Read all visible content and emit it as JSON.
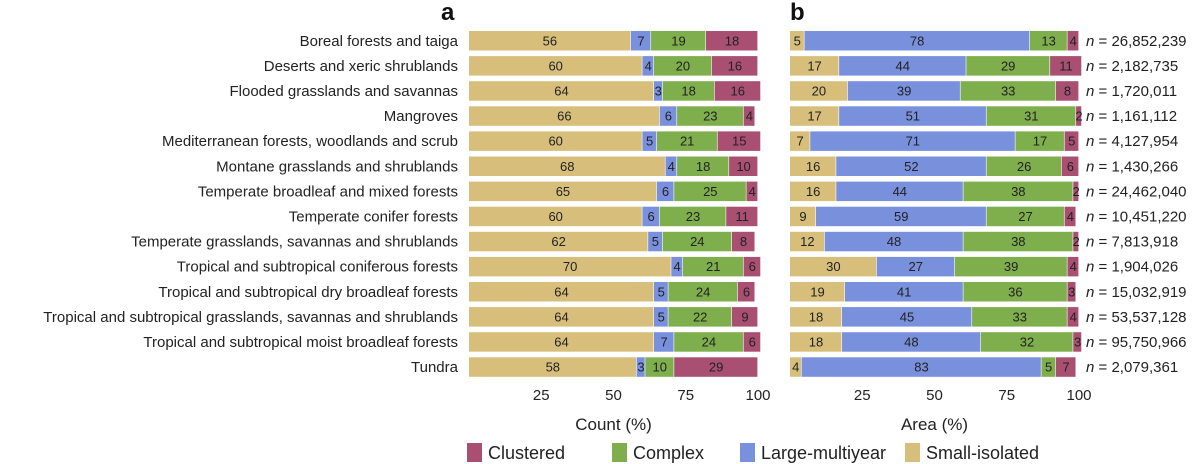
{
  "chart_data": [
    {
      "type": "bar",
      "orientation": "horizontal",
      "stacked": true,
      "panel_label": "a",
      "xlabel": "Count (%)",
      "xlim": [
        0,
        100
      ],
      "xticks": [
        25,
        50,
        75,
        100
      ],
      "categories": [
        "Boreal forests and taiga",
        "Deserts and xeric shrublands",
        "Flooded grasslands and savannas",
        "Mangroves",
        "Mediterranean forests, woodlands and scrub",
        "Montane grasslands and shrublands",
        "Temperate broadleaf and mixed forests",
        "Temperate conifer forests",
        "Temperate grasslands, savannas and shrublands",
        "Tropical and subtropical coniferous forests",
        "Tropical and subtropical dry broadleaf forests",
        "Tropical and subtropical grasslands, savannas and shrublands",
        "Tropical and subtropical moist broadleaf forests",
        "Tundra"
      ],
      "series": [
        {
          "name": "Small-isolated",
          "color": "#d7bf7b",
          "values": [
            56,
            60,
            64,
            66,
            60,
            68,
            65,
            60,
            62,
            70,
            64,
            64,
            64,
            58
          ]
        },
        {
          "name": "Large-multiyear",
          "color": "#7990dd",
          "values": [
            7,
            4,
            3,
            6,
            5,
            4,
            6,
            6,
            5,
            4,
            5,
            5,
            7,
            3
          ]
        },
        {
          "name": "Complex",
          "color": "#7fae4d",
          "values": [
            19,
            20,
            18,
            23,
            21,
            18,
            25,
            23,
            24,
            21,
            24,
            22,
            24,
            10
          ]
        },
        {
          "name": "Clustered",
          "color": "#a84f72",
          "values": [
            18,
            16,
            16,
            4,
            15,
            10,
            4,
            11,
            8,
            6,
            6,
            9,
            6,
            29
          ]
        }
      ]
    },
    {
      "type": "bar",
      "orientation": "horizontal",
      "stacked": true,
      "panel_label": "b",
      "xlabel": "Area (%)",
      "xlim": [
        0,
        100
      ],
      "xticks": [
        25,
        50,
        75,
        100
      ],
      "series": [
        {
          "name": "Small-isolated",
          "color": "#d7bf7b",
          "values": [
            5,
            17,
            20,
            17,
            7,
            16,
            16,
            9,
            12,
            30,
            19,
            18,
            18,
            4
          ]
        },
        {
          "name": "Large-multiyear",
          "color": "#7990dd",
          "values": [
            78,
            44,
            39,
            51,
            71,
            52,
            44,
            59,
            48,
            27,
            41,
            45,
            48,
            83
          ]
        },
        {
          "name": "Complex",
          "color": "#7fae4d",
          "values": [
            13,
            29,
            33,
            31,
            17,
            26,
            38,
            27,
            38,
            39,
            36,
            33,
            32,
            5
          ]
        },
        {
          "name": "Clustered",
          "color": "#a84f72",
          "values": [
            4,
            11,
            8,
            2,
            5,
            6,
            2,
            4,
            2,
            4,
            3,
            4,
            3,
            7
          ]
        }
      ],
      "n_labels": [
        "n = 26,852,239",
        "n = 2,182,735",
        "n = 1,720,011",
        "n = 1,161,112",
        "n = 4,127,954",
        "n = 1,430,266",
        "n = 24,462,040",
        "n = 10,451,220",
        "n = 7,813,918",
        "n = 1,904,026",
        "n = 15,032,919",
        "n = 53,537,128",
        "n = 95,750,966",
        "n = 2,079,361"
      ]
    }
  ],
  "legend": [
    {
      "name": "Clustered",
      "color": "#a84f72"
    },
    {
      "name": "Complex",
      "color": "#7fae4d"
    },
    {
      "name": "Large-multiyear",
      "color": "#7990dd"
    },
    {
      "name": "Small-isolated",
      "color": "#d7bf7b"
    }
  ]
}
